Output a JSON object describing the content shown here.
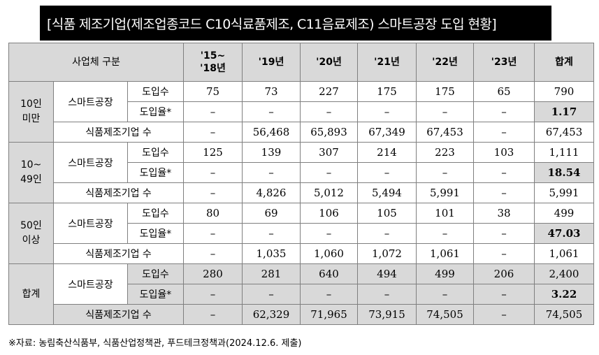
{
  "title": "[식품 제조기업(제조업종코드 C10식료품제조, C11음료제조) 스마트공장 도입 현황]",
  "header": {
    "category": "사업체 구분",
    "years": [
      "'15~'18년",
      "'19년",
      "'20년",
      "'21년",
      "'22년",
      "'23년"
    ],
    "total": "합계"
  },
  "labels": {
    "smart_factory": "스마트공장",
    "adoption_count": "도입수",
    "adoption_rate": "도입율*",
    "food_companies": "식품제조기업 수"
  },
  "groups": [
    {
      "name": [
        "10인",
        "미만"
      ],
      "count": [
        "75",
        "73",
        "227",
        "175",
        "175",
        "65",
        "790"
      ],
      "rate": [
        "–",
        "–",
        "–",
        "–",
        "–",
        "–",
        "1.17"
      ],
      "companies": [
        "–",
        "56,468",
        "65,893",
        "67,349",
        "67,453",
        "–",
        "67,453"
      ]
    },
    {
      "name": [
        "10~",
        "49인"
      ],
      "count": [
        "125",
        "139",
        "307",
        "214",
        "223",
        "103",
        "1,111"
      ],
      "rate": [
        "–",
        "–",
        "–",
        "–",
        "–",
        "–",
        "18.54"
      ],
      "companies": [
        "–",
        "4,826",
        "5,012",
        "5,494",
        "5,991",
        "–",
        "5,991"
      ]
    },
    {
      "name": [
        "50인",
        "이상"
      ],
      "count": [
        "80",
        "69",
        "106",
        "105",
        "101",
        "38",
        "499"
      ],
      "rate": [
        "–",
        "–",
        "–",
        "–",
        "–",
        "–",
        "47.03"
      ],
      "companies": [
        "–",
        "1,035",
        "1,060",
        "1,072",
        "1,061",
        "–",
        "1,061"
      ]
    },
    {
      "name": [
        "합계"
      ],
      "count": [
        "280",
        "281",
        "640",
        "494",
        "499",
        "206",
        "2,400"
      ],
      "rate": [
        "–",
        "–",
        "–",
        "–",
        "–",
        "–",
        "3.22"
      ],
      "companies": [
        "–",
        "62,329",
        "71,965",
        "73,915",
        "74,505",
        "–",
        "74,505"
      ]
    }
  ],
  "footnote": "※자료: 농림축산식품부, 식품산업정책관, 푸드테크정책과(2024.12.6. 제출)"
}
